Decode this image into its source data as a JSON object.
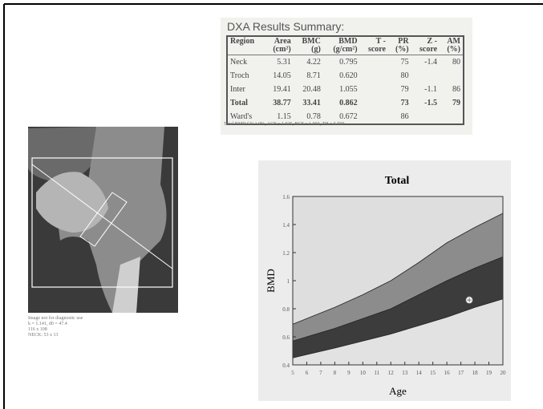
{
  "table": {
    "title": "DXA Results Summary:",
    "columns": [
      [
        "Region"
      ],
      [
        "Area",
        "(cm²)"
      ],
      [
        "BMC",
        "(g)"
      ],
      [
        "BMD",
        "(g/cm²)"
      ],
      [
        "T -",
        "score"
      ],
      [
        "PR",
        "(%)"
      ],
      [
        "Z -",
        "score"
      ],
      [
        "AM",
        "(%)"
      ]
    ],
    "rows": [
      [
        "Neck",
        "5.31",
        "4.22",
        "0.795",
        null,
        "75",
        "-1.4",
        "80"
      ],
      [
        "Troch",
        "14.05",
        "8.71",
        "0.620",
        null,
        "80",
        null,
        null
      ],
      [
        "Inter",
        "19.41",
        "20.48",
        "1.055",
        null,
        "79",
        "-1.1",
        "86"
      ],
      [
        "Total",
        "38.77",
        "33.41",
        "0.862",
        null,
        "73",
        "-1.5",
        "79"
      ],
      [
        "Ward's",
        "1.15",
        "0.78",
        "0.672",
        null,
        "86",
        null,
        null
      ]
    ],
    "footnote": "Total BMD CV 1.0%, ACF = 1.025, BCF = 1.003, TH = 5.590"
  },
  "image": {
    "caption": [
      "Image not for diagnostic use",
      "k = 1.141, d0 = 47.4",
      "116 x 108",
      "NECK: 53 x 13"
    ]
  },
  "chart_data": {
    "type": "area",
    "title": "Total",
    "xlabel": "Age",
    "ylabel": "BMD",
    "x": [
      5,
      8,
      10,
      12,
      14,
      16,
      18,
      20
    ],
    "series": [
      {
        "color": "#8c8c8c",
        "values": [
          0.69,
          0.81,
          0.9,
          1.0,
          1.13,
          1.27,
          1.38,
          1.48
        ]
      },
      {
        "color": "#3c3c3c",
        "values": [
          0.57,
          0.66,
          0.73,
          0.8,
          0.9,
          1.0,
          1.09,
          1.17
        ]
      },
      {
        "color": "#e2e2e2",
        "values": [
          0.45,
          0.52,
          0.57,
          0.62,
          0.68,
          0.74,
          0.81,
          0.87
        ]
      }
    ],
    "point": {
      "x": 17.6,
      "y": 0.862,
      "color": "#ffffff"
    },
    "background": "#dedede",
    "xlim": [
      5,
      20
    ],
    "xticks": [
      5,
      6,
      7,
      8,
      9,
      10,
      11,
      12,
      13,
      14,
      15,
      16,
      17,
      18,
      19,
      20
    ],
    "ylim": [
      0.4,
      1.6
    ],
    "yticks": [
      0.4,
      0.6,
      0.8,
      1,
      1.2,
      1.4,
      1.6
    ]
  }
}
